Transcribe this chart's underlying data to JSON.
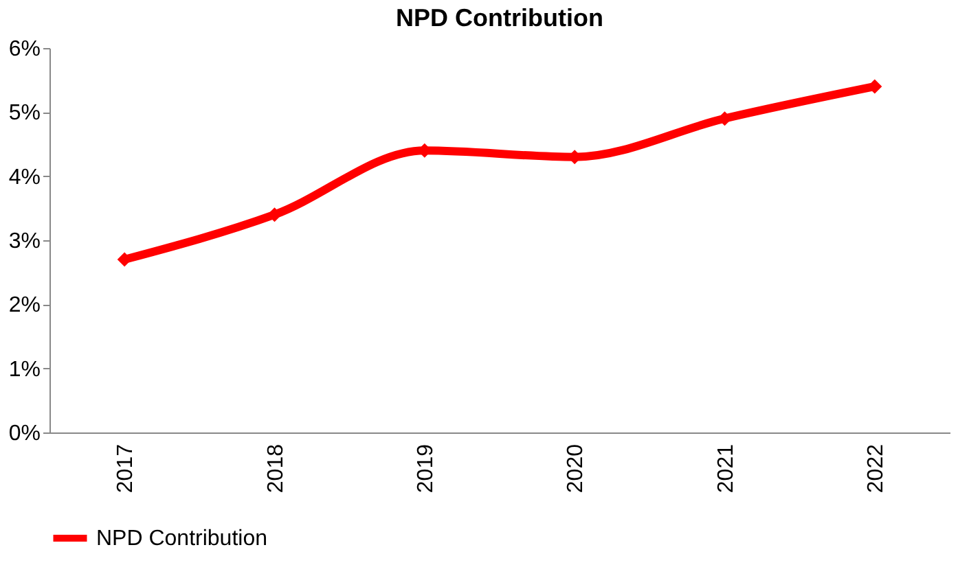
{
  "chart_data": {
    "type": "line",
    "title": "NPD Contribution",
    "categories": [
      "2017",
      "2018",
      "2019",
      "2020",
      "2021",
      "2022"
    ],
    "series": [
      {
        "name": "NPD Contribution",
        "color": "#ff0000",
        "values": [
          2.7,
          3.4,
          4.4,
          4.3,
          4.9,
          5.4
        ]
      }
    ],
    "ylim": [
      0,
      6
    ],
    "yticks": [
      {
        "value": 0,
        "label": "0%"
      },
      {
        "value": 1,
        "label": "1%"
      },
      {
        "value": 2,
        "label": "2%"
      },
      {
        "value": 3,
        "label": "3%"
      },
      {
        "value": 4,
        "label": "4%"
      },
      {
        "value": 5,
        "label": "5%"
      },
      {
        "value": 6,
        "label": "6%"
      }
    ],
    "grid": false,
    "legend": "bottom",
    "marker": "diamond",
    "line_style": "solid"
  }
}
